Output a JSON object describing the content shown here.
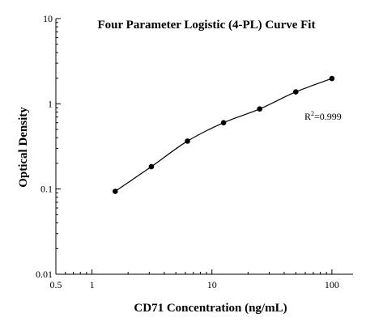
{
  "chart_data": {
    "type": "scatter",
    "title": "Four Parameter Logistic (4-PL) Curve Fit",
    "xlabel": "CD71 Concentration (ng/mL)",
    "ylabel": "Optical Density",
    "x_scale": "log",
    "y_scale": "log",
    "xlim": [
      0.5,
      150
    ],
    "ylim": [
      0.01,
      10
    ],
    "x_ticks": [
      {
        "value": 0.5,
        "label": "0.5"
      },
      {
        "value": 1,
        "label": "1"
      },
      {
        "value": 10,
        "label": "10"
      },
      {
        "value": 100,
        "label": "100"
      }
    ],
    "y_ticks": [
      {
        "value": 0.01,
        "label": "0.01"
      },
      {
        "value": 0.1,
        "label": "0.1"
      },
      {
        "value": 1,
        "label": "1"
      },
      {
        "value": 10,
        "label": "10"
      }
    ],
    "grid": false,
    "x": [
      1.5625,
      3.125,
      6.25,
      12.5,
      25,
      50,
      100
    ],
    "y": [
      0.094,
      0.183,
      0.365,
      0.6,
      0.87,
      1.38,
      1.98
    ],
    "fit_curve": true,
    "annotation": {
      "base": "R",
      "sup": "2",
      "value": "=0.999"
    }
  }
}
